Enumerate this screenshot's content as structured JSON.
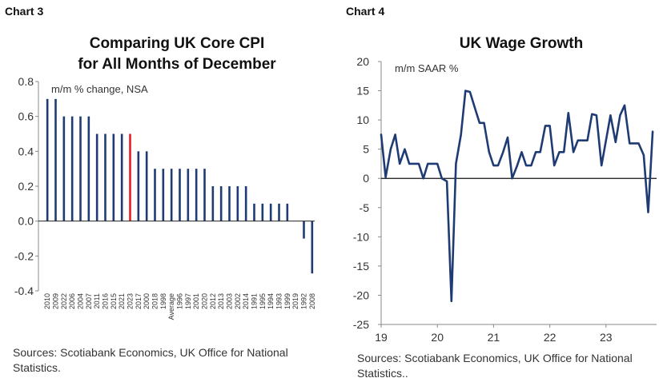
{
  "chart_data": [
    {
      "type": "bar",
      "label": "Chart 3",
      "title_lines": [
        "Comparing UK Core CPI",
        "for All Months of December"
      ],
      "unit_label": "m/m % change, NSA",
      "ylim": [
        -0.4,
        0.8
      ],
      "yticks": [
        "0.8",
        "0.6",
        "0.4",
        "0.2",
        "0.0",
        "-0.2",
        "-0.4"
      ],
      "ytick_values": [
        0.8,
        0.6,
        0.4,
        0.2,
        0.0,
        -0.2,
        -0.4
      ],
      "categories": [
        "2010",
        "2009",
        "2022",
        "2006",
        "2004",
        "2007",
        "2011",
        "2016",
        "2015",
        "2021",
        "2023",
        "2017",
        "2000",
        "2018",
        "1998",
        "Average",
        "1996",
        "1997",
        "2001",
        "2020",
        "2012",
        "2013",
        "2003",
        "2002",
        "2014",
        "1991",
        "1995",
        "1994",
        "1993",
        "1999",
        "2019",
        "1992",
        "2008"
      ],
      "values": [
        0.7,
        0.7,
        0.6,
        0.6,
        0.6,
        0.6,
        0.5,
        0.5,
        0.5,
        0.5,
        0.5,
        0.4,
        0.4,
        0.3,
        0.3,
        0.3,
        0.3,
        0.3,
        0.3,
        0.3,
        0.2,
        0.2,
        0.2,
        0.2,
        0.2,
        0.1,
        0.1,
        0.1,
        0.1,
        0.1,
        0.0,
        -0.1,
        -0.3
      ],
      "highlight_category": "2023",
      "colors": {
        "bar": "#1f3b73",
        "highlight": "#e41e26"
      },
      "source": "Sources: Scotiabank Economics, UK Office for National Statistics."
    },
    {
      "type": "line",
      "label": "Chart 4",
      "title": "UK Wage Growth",
      "unit_label": "m/m SAAR %",
      "ylim": [
        -25,
        20
      ],
      "yticks": [
        "20",
        "15",
        "10",
        "5",
        "0",
        "-5",
        "-10",
        "-15",
        "-20",
        "-25"
      ],
      "ytick_values": [
        20,
        15,
        10,
        5,
        0,
        -5,
        -10,
        -15,
        -20,
        -25
      ],
      "xlim": [
        2019.0,
        2023.9
      ],
      "xticks": [
        "19",
        "20",
        "21",
        "22",
        "23"
      ],
      "xtick_values": [
        2019,
        2020,
        2021,
        2022,
        2023
      ],
      "series": [
        {
          "x": [
            2019.0,
            2019.08,
            2019.17,
            2019.25,
            2019.33,
            2019.42,
            2019.5,
            2019.58,
            2019.67,
            2019.75,
            2019.83,
            2019.92,
            2020.0,
            2020.08,
            2020.17,
            2020.25,
            2020.33,
            2020.42,
            2020.5,
            2020.58,
            2020.67,
            2020.75,
            2020.83,
            2020.92,
            2021.0,
            2021.08,
            2021.17,
            2021.25,
            2021.33,
            2021.42,
            2021.5,
            2021.58,
            2021.67,
            2021.75,
            2021.83,
            2021.92,
            2022.0,
            2022.08,
            2022.17,
            2022.25,
            2022.33,
            2022.42,
            2022.5,
            2022.58,
            2022.67,
            2022.75,
            2022.83,
            2022.92,
            2023.0,
            2023.08,
            2023.17,
            2023.25,
            2023.33,
            2023.42,
            2023.5,
            2023.58,
            2023.67,
            2023.75,
            2023.83
          ],
          "values": [
            7.5,
            0.2,
            5,
            7.5,
            2.5,
            5,
            2.5,
            2.5,
            2.5,
            0,
            2.5,
            2.5,
            2.5,
            0,
            -0.5,
            -21,
            2.5,
            7.5,
            15,
            14.8,
            12,
            9.5,
            9.5,
            4.5,
            2.2,
            2.2,
            4.5,
            7,
            0,
            2.2,
            4.5,
            2.2,
            2.2,
            4.5,
            4.5,
            9,
            9,
            2.2,
            4.5,
            4.5,
            11.2,
            4.5,
            6.5,
            6.5,
            6.5,
            11,
            10.8,
            2.2,
            6.5,
            10.8,
            6.2,
            10.8,
            12.5,
            6,
            6,
            6,
            4,
            -5.8,
            8
          ]
        }
      ],
      "colors": {
        "line": "#1f3b73",
        "zero": "#111111"
      },
      "source": "Sources: Scotiabank Economics, UK Office for National Statistics.."
    }
  ]
}
